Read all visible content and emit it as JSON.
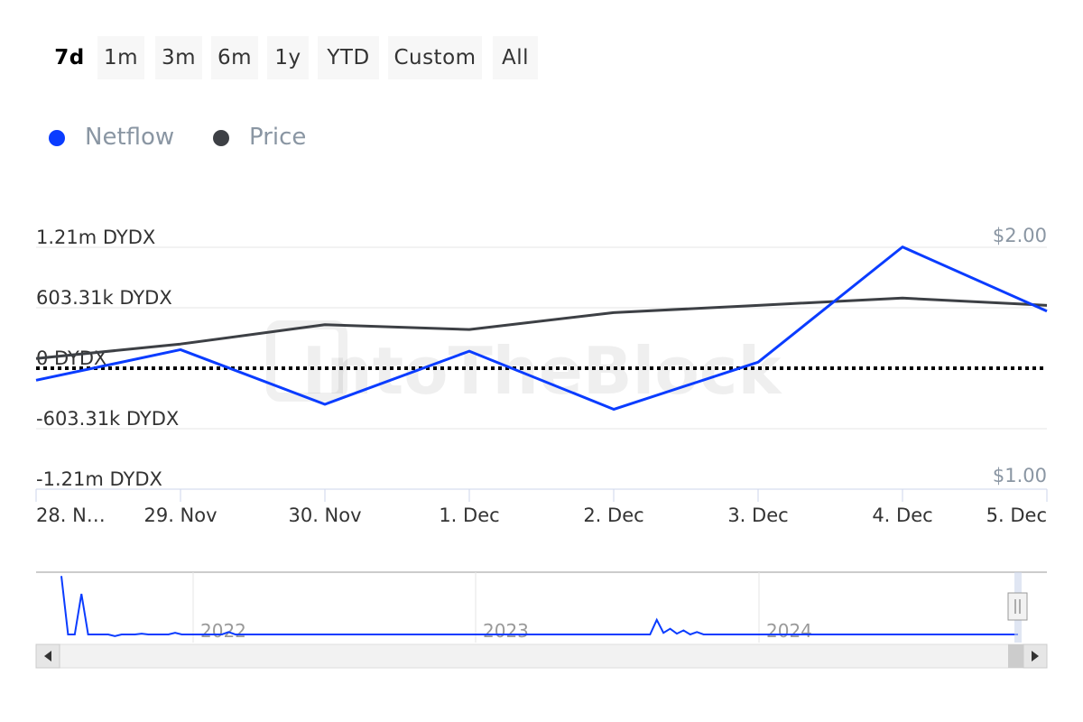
{
  "range_buttons": [
    {
      "label": "7d",
      "active": true
    },
    {
      "label": "1m",
      "active": false
    },
    {
      "label": "3m",
      "active": false
    },
    {
      "label": "6m",
      "active": false
    },
    {
      "label": "1y",
      "active": false
    },
    {
      "label": "YTD",
      "active": false
    },
    {
      "label": "Custom",
      "active": false
    },
    {
      "label": "All",
      "active": false
    }
  ],
  "legend": [
    {
      "label": "Netflow",
      "color": "#0a3cff"
    },
    {
      "label": "Price",
      "color": "#3d4045"
    }
  ],
  "watermark": "IntoTheBlock",
  "chart_data": {
    "type": "line",
    "categories": [
      "28. N…",
      "29. Nov",
      "30. Nov",
      "1. Dec",
      "2. Dec",
      "3. Dec",
      "4. Dec",
      "5. Dec"
    ],
    "left_axis": {
      "tick_labels": [
        "1.21m DYDX",
        "603.31k DYDX",
        "0 DYDX",
        "-603.31k DYDX",
        "-1.21m DYDX"
      ],
      "ylim": [
        -1206620,
        1206620
      ]
    },
    "right_axis": {
      "tick_labels": [
        "$2.00",
        "$1.00"
      ],
      "ylim": [
        1.0,
        2.0
      ]
    },
    "series": [
      {
        "name": "Netflow",
        "axis": "left",
        "color": "#0a3cff",
        "values": [
          -120000,
          185000,
          -360000,
          170000,
          -410000,
          60000,
          1210000,
          570000
        ]
      },
      {
        "name": "Price",
        "axis": "right",
        "color": "#3d4045",
        "values": [
          1.54,
          1.6,
          1.68,
          1.66,
          1.73,
          1.76,
          1.79,
          1.76
        ]
      }
    ],
    "zero_line": {
      "value": 0,
      "style": "dotted"
    },
    "navigator": {
      "year_labels": [
        "2022",
        "2023",
        "2024"
      ],
      "series_values": [
        0.72,
        0.0,
        0.0,
        0.5,
        0.0,
        0.0,
        0.0,
        0.0,
        -0.02,
        0.0,
        0.0,
        0.0,
        0.01,
        0.0,
        0.0,
        0.0,
        0.0,
        0.02,
        0.0,
        0.0,
        0.0,
        0.0,
        0.0,
        0.0,
        0.0,
        0.03,
        0.0,
        0.0,
        0.0,
        0.0,
        0.0,
        0.0,
        0.0,
        0.0,
        0.0,
        0.0,
        0.0,
        0.0,
        0.0,
        0.0,
        0.0,
        0.0,
        0.0,
        0.0,
        0.0,
        0.0,
        0.0,
        0.0,
        0.0,
        0.0,
        0.0,
        0.0,
        0.0,
        0.0,
        0.0,
        0.0,
        0.0,
        0.0,
        0.0,
        0.0,
        0.0,
        0.0,
        0.0,
        0.0,
        0.0,
        0.0,
        0.0,
        0.0,
        0.0,
        0.0,
        0.0,
        0.0,
        0.0,
        0.0,
        0.0,
        0.0,
        0.0,
        0.0,
        0.0,
        0.0,
        0.0,
        0.0,
        0.0,
        0.0,
        0.0,
        0.0,
        0.0,
        0.0,
        0.0,
        0.18,
        0.02,
        0.07,
        0.01,
        0.05,
        0.0,
        0.03,
        0.0,
        0.0,
        0.0,
        0.0,
        0.0,
        0.0,
        0.0,
        0.0,
        0.0,
        0.0,
        0.0,
        0.0,
        0.0,
        0.0,
        0.0,
        0.0,
        0.0,
        0.0,
        0.0,
        0.0,
        0.0,
        0.0,
        0.0,
        0.0,
        0.0,
        0.0,
        0.0,
        0.0,
        0.0,
        0.0,
        0.0,
        0.0,
        0.0,
        0.0,
        0.0,
        0.0,
        0.0,
        0.0,
        0.0,
        0.0,
        0.0,
        0.0,
        0.0,
        0.0,
        0.0,
        0.0,
        0.0,
        0.0
      ]
    }
  }
}
